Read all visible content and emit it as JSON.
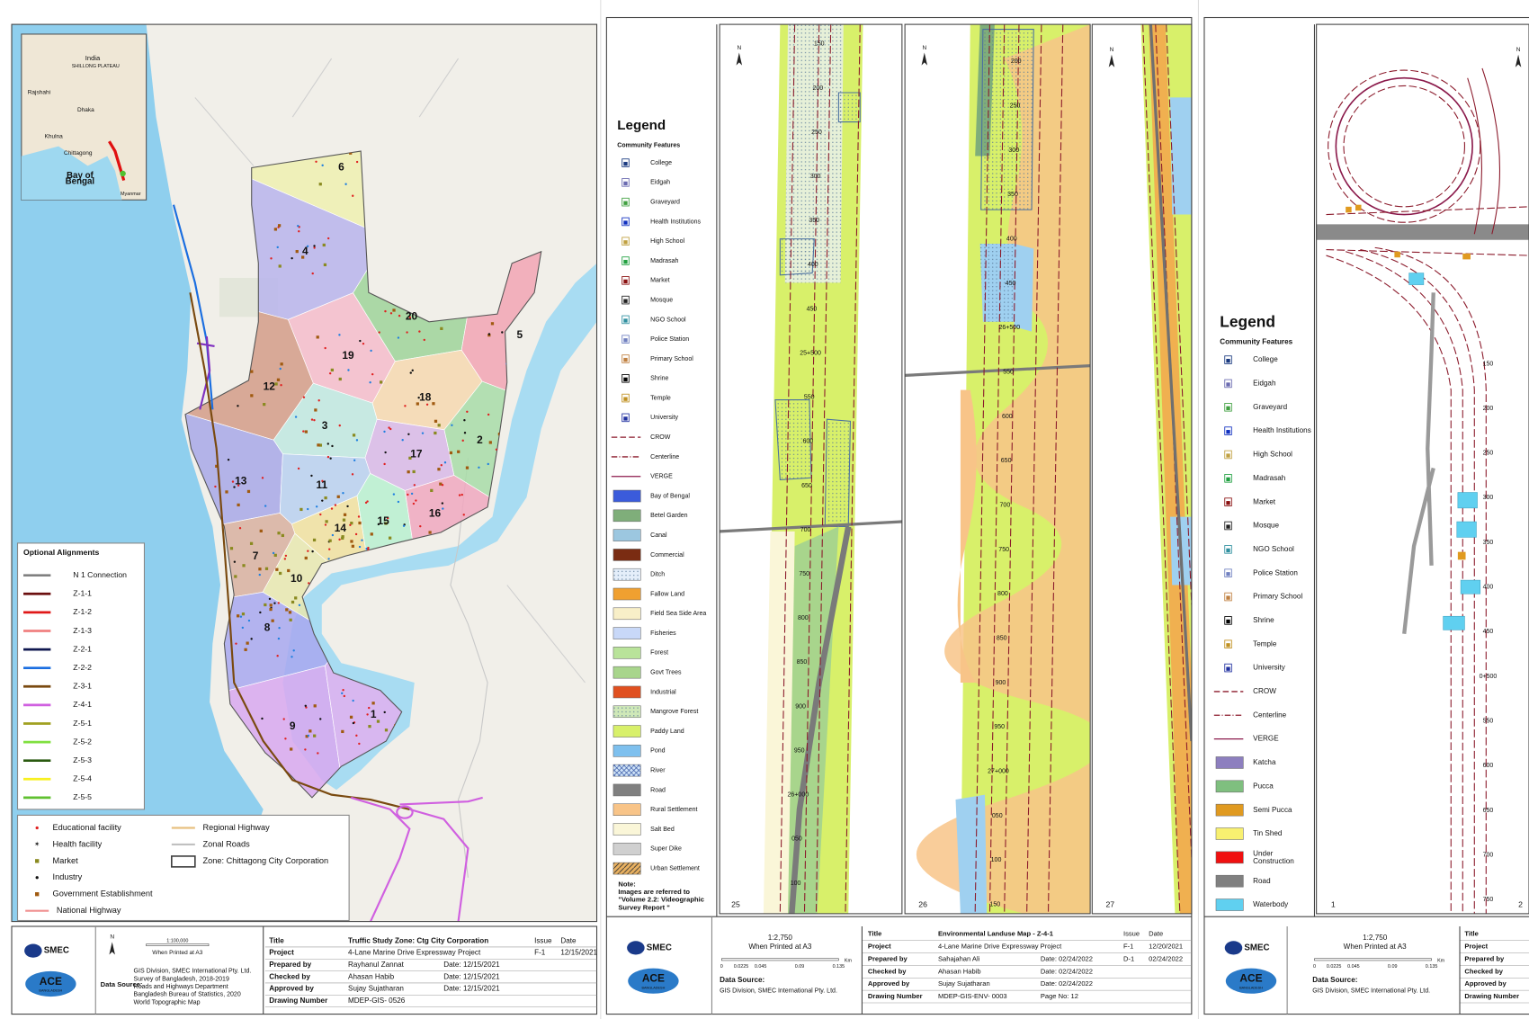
{
  "logos": {
    "smec": "SMEC",
    "ace": "ACE",
    "ace_sub": "BANGLADESH"
  },
  "north": "N",
  "sheet1": {
    "inset": [
      "India",
      "SHILLONG PLATEAU",
      "Rajshahi",
      "Dhaka",
      "Khulna",
      "Chittagong",
      "Bay of Bengal",
      "Myanmar"
    ],
    "zones": [
      {
        "label": "6",
        "color": "#eef0b0"
      },
      {
        "label": "4",
        "color": "#b8b4ec"
      },
      {
        "label": "20",
        "color": "#9fd49a"
      },
      {
        "label": "5",
        "color": "#f2a4b4"
      },
      {
        "label": "19",
        "color": "#f4bccb"
      },
      {
        "label": "12",
        "color": "#d39c88"
      },
      {
        "label": "18",
        "color": "#f6d8b0"
      },
      {
        "label": "3",
        "color": "#bfe8e0"
      },
      {
        "label": "2",
        "color": "#a8dca8"
      },
      {
        "label": "17",
        "color": "#d8b8e8"
      },
      {
        "label": "13",
        "color": "#a8a8e8"
      },
      {
        "label": "11",
        "color": "#b8d0f0"
      },
      {
        "label": "15",
        "color": "#b8f0d0"
      },
      {
        "label": "16",
        "color": "#f0a8c0"
      },
      {
        "label": "14",
        "color": "#f0e0a0"
      },
      {
        "label": "7",
        "color": "#d8b0a0"
      },
      {
        "label": "10",
        "color": "#e8e8b0"
      },
      {
        "label": "8",
        "color": "#a8a8f0"
      },
      {
        "label": "9",
        "color": "#d8a8f0"
      },
      {
        "label": "1",
        "color": "#e0b0f0"
      }
    ],
    "alignments": {
      "title": "Optional Alignments",
      "items": [
        {
          "name": "N 1 Connection",
          "color": "#808080"
        },
        {
          "name": "Z-1-1",
          "color": "#6b0f0f"
        },
        {
          "name": "Z-1-2",
          "color": "#e01818"
        },
        {
          "name": "Z-1-3",
          "color": "#f08080"
        },
        {
          "name": "Z-2-1",
          "color": "#101850"
        },
        {
          "name": "Z-2-2",
          "color": "#1a6ee0"
        },
        {
          "name": "Z-3-1",
          "color": "#7a4a10"
        },
        {
          "name": "Z-4-1",
          "color": "#d060e0"
        },
        {
          "name": "Z-5-1",
          "color": "#a0a020"
        },
        {
          "name": "Z-5-2",
          "color": "#80e040"
        },
        {
          "name": "Z-5-3",
          "color": "#2a5a10"
        },
        {
          "name": "Z-5-4",
          "color": "#f8f020"
        },
        {
          "name": "Z-5-5",
          "color": "#60c030"
        }
      ]
    },
    "features": [
      {
        "name": "Educational facility",
        "kind": "dot",
        "color": "#e02020"
      },
      {
        "name": "Health facility",
        "kind": "star",
        "color": "#2080e0"
      },
      {
        "name": "Market",
        "kind": "square",
        "color": "#8a8a20"
      },
      {
        "name": "Industry",
        "kind": "dot",
        "color": "#101010"
      },
      {
        "name": "Government Establishment",
        "kind": "square",
        "color": "#a05a10"
      },
      {
        "name": "National Highway",
        "kind": "line",
        "color": "#f09090"
      },
      {
        "name": "Regional Highway",
        "kind": "line",
        "color": "#e8c080"
      },
      {
        "name": "Zonal Roads",
        "kind": "line",
        "color": "#c0c0c0"
      },
      {
        "name": "Zone: Chittagong City Corporation",
        "kind": "box",
        "color": "#404040"
      }
    ],
    "scale": "1:100,000",
    "printed": "When Printed at A3",
    "source_label": "Data Source:",
    "source": [
      "GIS Division, SMEC International Pty. Ltd.",
      "Survey of Bangladesh, 2018-2019",
      "Roads and Highways Department",
      "Bangladesh Bureau of Statistics, 2020",
      "World Topographic Map"
    ],
    "rows": [
      [
        "Title",
        "Truffic Study Zone: Ctg City Corporation",
        "Issue",
        "Date"
      ],
      [
        "Project",
        "4-Lane Marine Drive Expressway Project",
        "F-1",
        "12/15/2021"
      ],
      [
        "Prepared by",
        "Rayhanul Zannat",
        "Date: 12/15/2021"
      ],
      [
        "Checked by",
        "Ahasan Habib",
        "Date: 12/15/2021"
      ],
      [
        "Approved by",
        "Sujay Sujatharan",
        "Date: 12/15/2021"
      ],
      [
        "Drawing Number",
        "MDEP-GIS- 0526"
      ]
    ]
  },
  "sheet2": {
    "legend": "Legend",
    "group": "Community Features",
    "items": [
      {
        "name": "College",
        "kind": "icon",
        "color": "#1a3a80"
      },
      {
        "name": "Eidgah",
        "kind": "icon",
        "color": "#6a6ab0"
      },
      {
        "name": "Graveyard",
        "kind": "icon",
        "color": "#40a040"
      },
      {
        "name": "Health Institutions",
        "kind": "icon",
        "color": "#1030c0"
      },
      {
        "name": "High School",
        "kind": "icon",
        "color": "#c0a040"
      },
      {
        "name": "Madrasah",
        "kind": "icon",
        "color": "#20a040"
      },
      {
        "name": "Market",
        "kind": "icon",
        "color": "#8a1010"
      },
      {
        "name": "Mosque",
        "kind": "icon",
        "color": "#202020"
      },
      {
        "name": "NGO School",
        "kind": "icon",
        "color": "#3090a0"
      },
      {
        "name": "Police Station",
        "kind": "icon",
        "color": "#7080c0"
      },
      {
        "name": "Primary School",
        "kind": "icon",
        "color": "#c08040"
      },
      {
        "name": "Shrine",
        "kind": "icon",
        "color": "#000000"
      },
      {
        "name": "Temple",
        "kind": "icon",
        "color": "#c09020"
      },
      {
        "name": "University",
        "kind": "icon",
        "color": "#2030a0"
      },
      {
        "name": "CROW",
        "kind": "line",
        "color": "#8b1a2b",
        "dash": "6 3"
      },
      {
        "name": "Centerline",
        "kind": "line",
        "color": "#8b1a2b",
        "dash": "6 2 1 2"
      },
      {
        "name": "VERGE",
        "kind": "line",
        "color": "#8b1a4b"
      },
      {
        "name": "Bay of Bengal",
        "kind": "fill",
        "color": "#3b5bdb"
      },
      {
        "name": "Betel Garden",
        "kind": "fill",
        "color": "#7fae7a"
      },
      {
        "name": "Canal",
        "kind": "fill",
        "color": "#9cc7e0"
      },
      {
        "name": "Commercial",
        "kind": "fill",
        "color": "#7a2c12"
      },
      {
        "name": "Ditch",
        "kind": "fill",
        "color": "#e4eefa",
        "pattern": "dots"
      },
      {
        "name": "Fallow Land",
        "kind": "fill",
        "color": "#f0a030"
      },
      {
        "name": "Field Sea Side Area",
        "kind": "fill",
        "color": "#f8efc8"
      },
      {
        "name": "Fisheries",
        "kind": "fill",
        "color": "#c8d8f8"
      },
      {
        "name": "Forest",
        "kind": "fill",
        "color": "#b9e39a"
      },
      {
        "name": "Govt Trees",
        "kind": "fill",
        "color": "#a8d58c"
      },
      {
        "name": "Industrial",
        "kind": "fill",
        "color": "#e05020"
      },
      {
        "name": "Mangrove Forest",
        "kind": "fill",
        "color": "#cfe8b8",
        "pattern": "dots"
      },
      {
        "name": "Paddy Land",
        "kind": "fill",
        "color": "#d8f06a"
      },
      {
        "name": "Pond",
        "kind": "fill",
        "color": "#7ec0ee"
      },
      {
        "name": "River",
        "kind": "fill",
        "color": "#d0e4f8",
        "pattern": "cross"
      },
      {
        "name": "Road",
        "kind": "fill",
        "color": "#808080"
      },
      {
        "name": "Rural Settlement",
        "kind": "fill",
        "color": "#f8c488"
      },
      {
        "name": "Salt Bed",
        "kind": "fill",
        "color": "#faf6d8"
      },
      {
        "name": "Super Dike",
        "kind": "fill",
        "color": "#d0d0d0"
      },
      {
        "name": "Urban Settlement",
        "kind": "fill",
        "color": "#e8b060",
        "pattern": "hatch"
      }
    ],
    "note": [
      "Note:",
      "Images are referred to",
      "\"Volume 2.2: Videographic",
      "Survey Report \""
    ],
    "pages": [
      "25",
      "26",
      "27"
    ],
    "chainage1": [
      "150",
      "200",
      "250",
      "300",
      "350",
      "400",
      "450",
      "25+500",
      "550",
      "600",
      "650",
      "700",
      "750",
      "800",
      "850",
      "900",
      "950",
      "26+000",
      "050",
      "100"
    ],
    "chainage2": [
      "200",
      "250",
      "300",
      "350",
      "400",
      "450",
      "26+500",
      "550",
      "600",
      "650",
      "700",
      "750",
      "800",
      "850",
      "900",
      "950",
      "27+000",
      "050",
      "100",
      "150"
    ],
    "scale": "1:2,750",
    "printed": "When Printed at A3",
    "scale_ticks": [
      "0",
      "0.0225",
      "0.045",
      "0.09",
      "0.135"
    ],
    "scale_unit": "Km",
    "source_label": "Data Source:",
    "source": [
      "GIS Division, SMEC International Pty. Ltd."
    ],
    "rows": [
      [
        "Title",
        "Environmental Landuse Map - Z-4-1",
        "Issue",
        "Date"
      ],
      [
        "Project",
        "4-Lane Marine Drive Expressway Project",
        "F-1",
        "12/20/2021"
      ],
      [
        "Prepared by",
        "Sahajahan Ali",
        "Date: 02/24/2022",
        "D-1",
        "02/24/2022"
      ],
      [
        "Checked by",
        "Ahasan Habib",
        "Date: 02/24/2022"
      ],
      [
        "Approved by",
        "Sujay Sujatharan",
        "Date: 02/24/2022"
      ],
      [
        "Drawing Number",
        "MDEP-GIS-ENV- 0003",
        "Page No: 12"
      ]
    ]
  },
  "sheet3": {
    "legend": "Legend",
    "group": "Community Features",
    "items": [
      {
        "name": "College",
        "kind": "icon",
        "color": "#1a3a80"
      },
      {
        "name": "Eidgah",
        "kind": "icon",
        "color": "#6a6ab0"
      },
      {
        "name": "Graveyard",
        "kind": "icon",
        "color": "#40a040"
      },
      {
        "name": "Health Institutions",
        "kind": "icon",
        "color": "#1030c0"
      },
      {
        "name": "High School",
        "kind": "icon",
        "color": "#c0a040"
      },
      {
        "name": "Madrasah",
        "kind": "icon",
        "color": "#20a040"
      },
      {
        "name": "Market",
        "kind": "icon",
        "color": "#8a1010"
      },
      {
        "name": "Mosque",
        "kind": "icon",
        "color": "#202020"
      },
      {
        "name": "NGO School",
        "kind": "icon",
        "color": "#3090a0"
      },
      {
        "name": "Police Station",
        "kind": "icon",
        "color": "#7080c0"
      },
      {
        "name": "Primary School",
        "kind": "icon",
        "color": "#c08040"
      },
      {
        "name": "Shrine",
        "kind": "icon",
        "color": "#000000"
      },
      {
        "name": "Temple",
        "kind": "icon",
        "color": "#c09020"
      },
      {
        "name": "University",
        "kind": "icon",
        "color": "#2030a0"
      },
      {
        "name": "CROW",
        "kind": "line",
        "color": "#8b1a2b",
        "dash": "6 3"
      },
      {
        "name": "Centerline",
        "kind": "line",
        "color": "#8b1a2b",
        "dash": "6 2 1 2"
      },
      {
        "name": "VERGE",
        "kind": "line",
        "color": "#8b1a4b"
      },
      {
        "name": "Katcha",
        "kind": "fill",
        "color": "#8d7fbf"
      },
      {
        "name": "Pucca",
        "kind": "fill",
        "color": "#7fbf7f"
      },
      {
        "name": "Semi Pucca",
        "kind": "fill",
        "color": "#e09a20"
      },
      {
        "name": "Tin Shed",
        "kind": "fill",
        "color": "#f8f070"
      },
      {
        "name": "Under\nConstruction",
        "kind": "fill",
        "color": "#f01010"
      },
      {
        "name": "Road",
        "kind": "fill",
        "color": "#808080"
      },
      {
        "name": "Waterbody",
        "kind": "fill",
        "color": "#60d0f0"
      }
    ],
    "pages": [
      "1",
      "2"
    ],
    "chainage": [
      "150",
      "200",
      "250",
      "300",
      "350",
      "400",
      "450",
      "0+500",
      "550",
      "600",
      "650",
      "700",
      "750"
    ],
    "scale": "1:2,750",
    "printed": "When Printed at A3",
    "scale_ticks": [
      "0",
      "0.0225",
      "0.045",
      "0.09",
      "0.135"
    ],
    "scale_unit": "Km",
    "source_label": "Data Source:",
    "source": [
      "GIS Division, SMEC International Pty. Ltd."
    ],
    "rows": [
      [
        "Title"
      ],
      [
        "Project"
      ],
      [
        "Prepared by"
      ],
      [
        "Checked by"
      ],
      [
        "Approved by"
      ],
      [
        "Drawing Number"
      ]
    ]
  }
}
